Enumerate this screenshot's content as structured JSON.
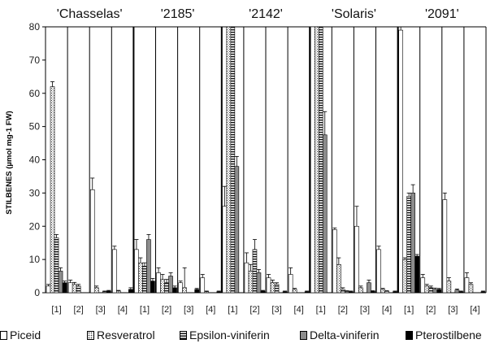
{
  "chart_data": {
    "type": "bar",
    "ylabel": "STILBENES (µmol mg-1 FW)",
    "ylim": [
      0,
      80
    ],
    "yticks": [
      0,
      10,
      20,
      30,
      40,
      50,
      60,
      70,
      80
    ],
    "grid": false,
    "legend_placement": "bottom",
    "cultivars": [
      "'Chasselas'",
      "'2185'",
      "'2142'",
      "'Solaris'",
      "'2091'"
    ],
    "categories": [
      "[1]",
      "[2]",
      "[3]",
      "[4]"
    ],
    "series": [
      {
        "name": "Piceid",
        "pattern": "blank",
        "values": [
          [
            2,
            3,
            31,
            13
          ],
          [
            13,
            6,
            3,
            4.5
          ],
          [
            26,
            9,
            4.5,
            5.5
          ],
          [
            80,
            19,
            20,
            13
          ],
          [
            79,
            4.5,
            28,
            4.5
          ]
        ],
        "errors": [
          [
            0.5,
            0.8,
            3.5,
            1
          ],
          [
            3,
            1.5,
            0.5,
            1
          ],
          [
            6,
            3,
            1,
            2
          ],
          [
            0,
            0.5,
            6,
            1
          ],
          [
            1,
            1,
            2,
            1.5
          ]
        ]
      },
      {
        "name": "Resveratrol",
        "pattern": "dots",
        "values": [
          [
            62,
            2.5,
            1.5,
            0.5
          ],
          [
            9,
            4,
            1.5,
            0.3
          ],
          [
            80,
            6.5,
            3,
            1
          ],
          [
            80,
            8.5,
            1.5,
            1
          ],
          [
            10,
            2,
            3.5,
            2.5
          ]
        ],
        "errors": [
          [
            1.5,
            0.6,
            0.5,
            0.2
          ],
          [
            1.5,
            1.5,
            6,
            0.2
          ],
          [
            0,
            2,
            0.8,
            0.3
          ],
          [
            0,
            2,
            0.5,
            0.3
          ],
          [
            0.5,
            0.5,
            1,
            0.5
          ]
        ]
      },
      {
        "name": "Epsilon-viniferin",
        "pattern": "hstripes",
        "values": [
          [
            16.5,
            2,
            0,
            0
          ],
          [
            8,
            3,
            0,
            0
          ],
          [
            80,
            13,
            2.5,
            0
          ],
          [
            80,
            1,
            0,
            0.4
          ],
          [
            29,
            1.5,
            0,
            0
          ]
        ],
        "errors": [
          [
            1,
            0.5,
            0,
            0
          ],
          [
            1,
            1,
            0,
            0
          ],
          [
            0,
            3,
            0.5,
            0
          ],
          [
            0,
            0.5,
            0,
            0.2
          ],
          [
            1,
            0.5,
            0,
            0
          ]
        ],
        "note": ""
      },
      {
        "name": "Delta-viniferin",
        "pattern": "gray",
        "values": [
          [
            6.5,
            0,
            0.3,
            0
          ],
          [
            16,
            5,
            0,
            0
          ],
          [
            38,
            6,
            0,
            0
          ],
          [
            47.5,
            0.4,
            3,
            0
          ],
          [
            30,
            1,
            0.8,
            0
          ]
        ],
        "errors": [
          [
            1,
            0,
            0.2,
            0
          ],
          [
            1.5,
            1,
            0,
            0
          ],
          [
            3,
            1,
            0,
            0
          ],
          [
            7,
            0.2,
            0.8,
            0
          ],
          [
            2.5,
            0.4,
            0.3,
            0
          ]
        ]
      },
      {
        "name": "Pterostilbene",
        "pattern": "black",
        "values": [
          [
            3,
            0,
            0.5,
            1
          ],
          [
            3.5,
            1.5,
            1,
            0.3
          ],
          [
            0,
            0.5,
            0.3,
            0.3
          ],
          [
            0,
            0.3,
            0.4,
            0.3
          ],
          [
            11,
            1,
            0.3,
            0.3
          ]
        ],
        "errors": [
          [
            0.5,
            0,
            0.2,
            0.5
          ],
          [
            0.8,
            0.5,
            0.3,
            0.2
          ],
          [
            0,
            0.2,
            0.2,
            0.2
          ],
          [
            0,
            0.2,
            0.2,
            0.2
          ],
          [
            0.5,
            0.3,
            0.2,
            0.2
          ]
        ]
      }
    ]
  }
}
